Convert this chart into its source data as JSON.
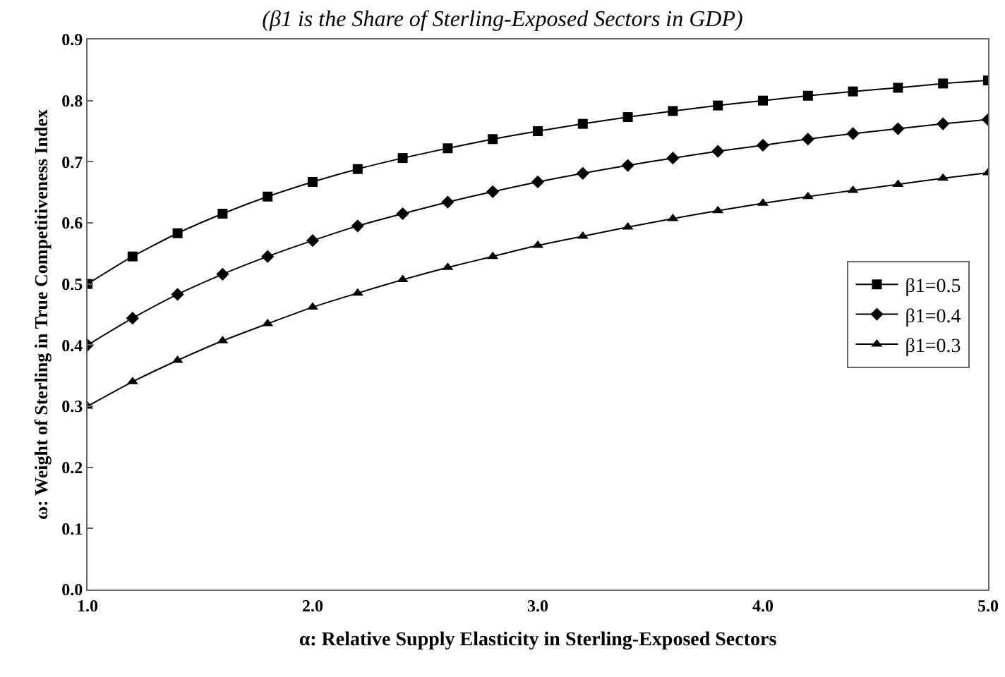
{
  "chart_data": {
    "type": "line",
    "title": "(β1 is the Share of Sterling-Exposed Sectors in GDP)",
    "xlabel": "α: Relative Supply Elasticity in Sterling-Exposed Sectors",
    "ylabel": "ω: Weight of Sterling in True Competitiveness Index",
    "x": [
      1.0,
      1.2,
      1.4,
      1.6,
      1.8,
      2.0,
      2.2,
      2.4,
      2.6,
      2.8,
      3.0,
      3.2,
      3.4,
      3.6,
      3.8,
      4.0,
      4.2,
      4.4,
      4.6,
      4.8,
      5.0
    ],
    "series": [
      {
        "name": "β1=0.5",
        "color": "#000000",
        "marker": "square",
        "values": [
          0.5,
          0.545,
          0.583,
          0.615,
          0.643,
          0.667,
          0.688,
          0.706,
          0.722,
          0.737,
          0.75,
          0.762,
          0.773,
          0.783,
          0.792,
          0.8,
          0.808,
          0.815,
          0.821,
          0.828,
          0.833
        ]
      },
      {
        "name": "β1=0.4",
        "color": "#000000",
        "marker": "diamond",
        "values": [
          0.4,
          0.444,
          0.483,
          0.516,
          0.545,
          0.571,
          0.595,
          0.615,
          0.634,
          0.651,
          0.667,
          0.681,
          0.694,
          0.706,
          0.717,
          0.727,
          0.737,
          0.746,
          0.754,
          0.762,
          0.769
        ]
      },
      {
        "name": "β1=0.3",
        "color": "#000000",
        "marker": "triangle",
        "values": [
          0.3,
          0.34,
          0.375,
          0.407,
          0.435,
          0.462,
          0.485,
          0.507,
          0.527,
          0.545,
          0.563,
          0.578,
          0.593,
          0.607,
          0.62,
          0.632,
          0.643,
          0.653,
          0.663,
          0.673,
          0.682
        ]
      }
    ],
    "xlim": [
      1,
      5
    ],
    "xticks": [
      {
        "value": 1,
        "label": "1.0"
      },
      {
        "value": 2,
        "label": "2.0"
      },
      {
        "value": 3,
        "label": "3.0"
      },
      {
        "value": 4,
        "label": "4.0"
      },
      {
        "value": 5,
        "label": "5.0"
      }
    ],
    "ylim": [
      0,
      0.9
    ],
    "yticks": [
      {
        "value": 0,
        "label": "0.0"
      },
      0.1,
      0.2,
      0.3,
      0.4,
      0.5,
      0.6,
      0.7,
      0.8,
      0.9
    ],
    "grid": false,
    "legend": "right",
    "line_style": "solid"
  }
}
